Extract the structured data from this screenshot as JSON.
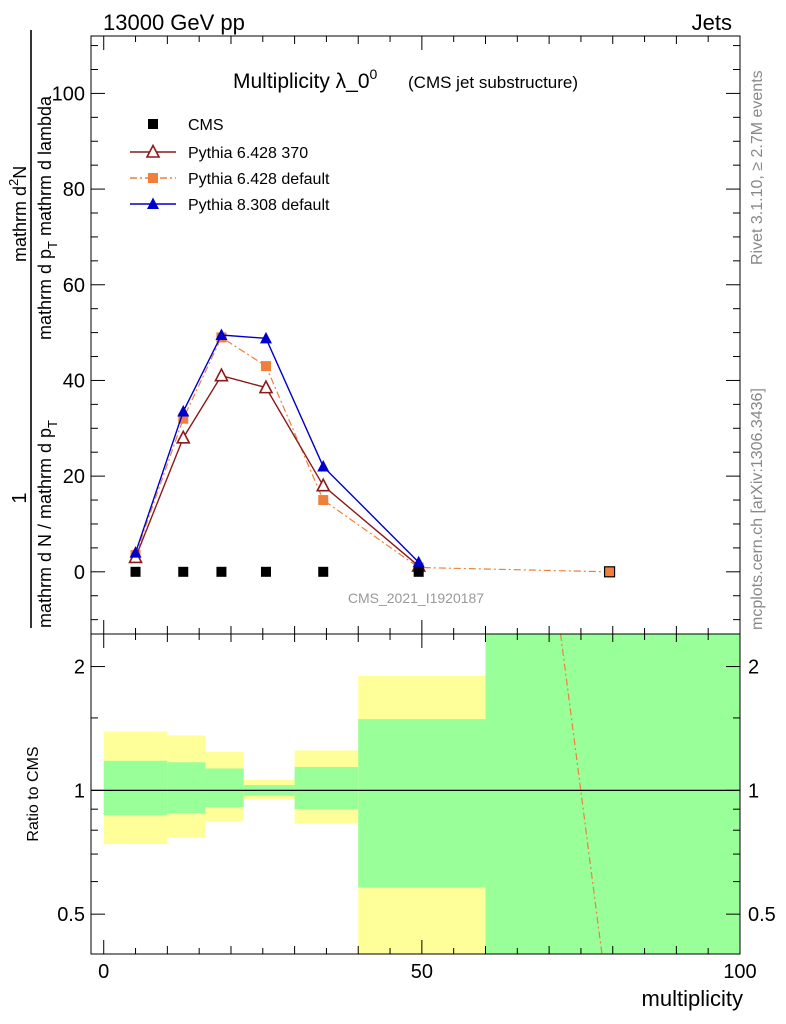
{
  "header": {
    "left": "13000 GeV pp",
    "right": "Jets"
  },
  "side": {
    "rivet": "Rivet 3.1.10, ≥ 2.7M events",
    "mcplots": "mcplots.cern.ch [arXiv:1306.3436]"
  },
  "chart_data": [
    {
      "type": "line",
      "title": "Multiplicity λ_0",
      "title_sup": "0",
      "subtitle": "(CMS jet substructure)",
      "watermark": "CMS_2021_I1920187",
      "ylabel": {
        "top_numerator": "mathrm d",
        "top_numerator_sup": "2",
        "top_numerator_tail": "N",
        "top_denominator": "mathrm d p",
        "top_denominator_sub": "T",
        "top_denominator_tail": " mathrm d lambda",
        "bottom_numerator": "1",
        "bottom_denominator": "mathrm d N / mathrm d p",
        "bottom_denominator_sub": "T"
      },
      "xlim": [
        -2,
        100
      ],
      "ylim": [
        -13,
        112
      ],
      "x_ticks": [
        0,
        50,
        100
      ],
      "y_ticks": [
        0,
        20,
        40,
        60,
        80,
        100
      ],
      "legend_position": "top-left",
      "series": [
        {
          "name": "CMS",
          "color": "#000000",
          "marker": "square",
          "line": "none",
          "x": [
            5,
            12.5,
            18.5,
            25.5,
            34.5,
            49.5,
            79.5
          ],
          "y": [
            0,
            0,
            0,
            0,
            0,
            0,
            0
          ]
        },
        {
          "name": "Pythia 6.428 370",
          "color": "#8b1a1a",
          "marker": "open-triangle",
          "line": "solid",
          "x": [
            5,
            12.5,
            18.5,
            25.5,
            34.5,
            49.5
          ],
          "y": [
            3.0,
            28.0,
            41.0,
            38.5,
            18.0,
            1.2
          ]
        },
        {
          "name": "Pythia 6.428 default",
          "color": "#f07f3c",
          "marker": "square",
          "line": "dashdot",
          "x": [
            5,
            12.5,
            18.5,
            25.5,
            34.5,
            49.5,
            79.5
          ],
          "y": [
            3.5,
            32.0,
            49.0,
            43.0,
            15.0,
            0.9,
            0.0
          ]
        },
        {
          "name": "Pythia 8.308 default",
          "color": "#0000cc",
          "marker": "filled-triangle",
          "line": "solid",
          "x": [
            5,
            12.5,
            18.5,
            25.5,
            34.5,
            49.5
          ],
          "y": [
            4.0,
            33.5,
            49.5,
            48.8,
            22.0,
            2.0
          ]
        }
      ]
    },
    {
      "type": "area",
      "ylabel": "Ratio to CMS",
      "xlabel": "multiplicity",
      "ylim": [
        0.4,
        2.4
      ],
      "log_y": true,
      "y_ticks": [
        0.5,
        1,
        2
      ],
      "x_ticks": [
        0,
        50,
        100
      ],
      "reference_line": 1,
      "bands": [
        {
          "x_from": 0,
          "x_to": 10,
          "yellow": [
            0.74,
            1.39
          ],
          "green": [
            0.87,
            1.18
          ]
        },
        {
          "x_from": 10,
          "x_to": 16,
          "yellow": [
            0.77,
            1.36
          ],
          "green": [
            0.88,
            1.17
          ]
        },
        {
          "x_from": 16,
          "x_to": 22,
          "yellow": [
            0.84,
            1.24
          ],
          "green": [
            0.91,
            1.13
          ]
        },
        {
          "x_from": 22,
          "x_to": 30,
          "yellow": [
            0.95,
            1.06
          ],
          "green": [
            0.97,
            1.03
          ]
        },
        {
          "x_from": 30,
          "x_to": 40,
          "yellow": [
            0.83,
            1.25
          ],
          "green": [
            0.9,
            1.14
          ]
        },
        {
          "x_from": 40,
          "x_to": 60,
          "yellow": [
            0.4,
            1.9
          ],
          "green": [
            0.58,
            1.49
          ]
        },
        {
          "x_from": 60,
          "x_to": 100,
          "yellow": [
            0.4,
            2.4
          ],
          "green": [
            0.4,
            2.4
          ]
        }
      ],
      "ratio_lines": [
        {
          "name": "Pythia 6.428 default",
          "color": "#f07f3c",
          "x": [
            71.8,
            78.3
          ],
          "y": [
            2.4,
            0.4
          ]
        }
      ]
    }
  ]
}
